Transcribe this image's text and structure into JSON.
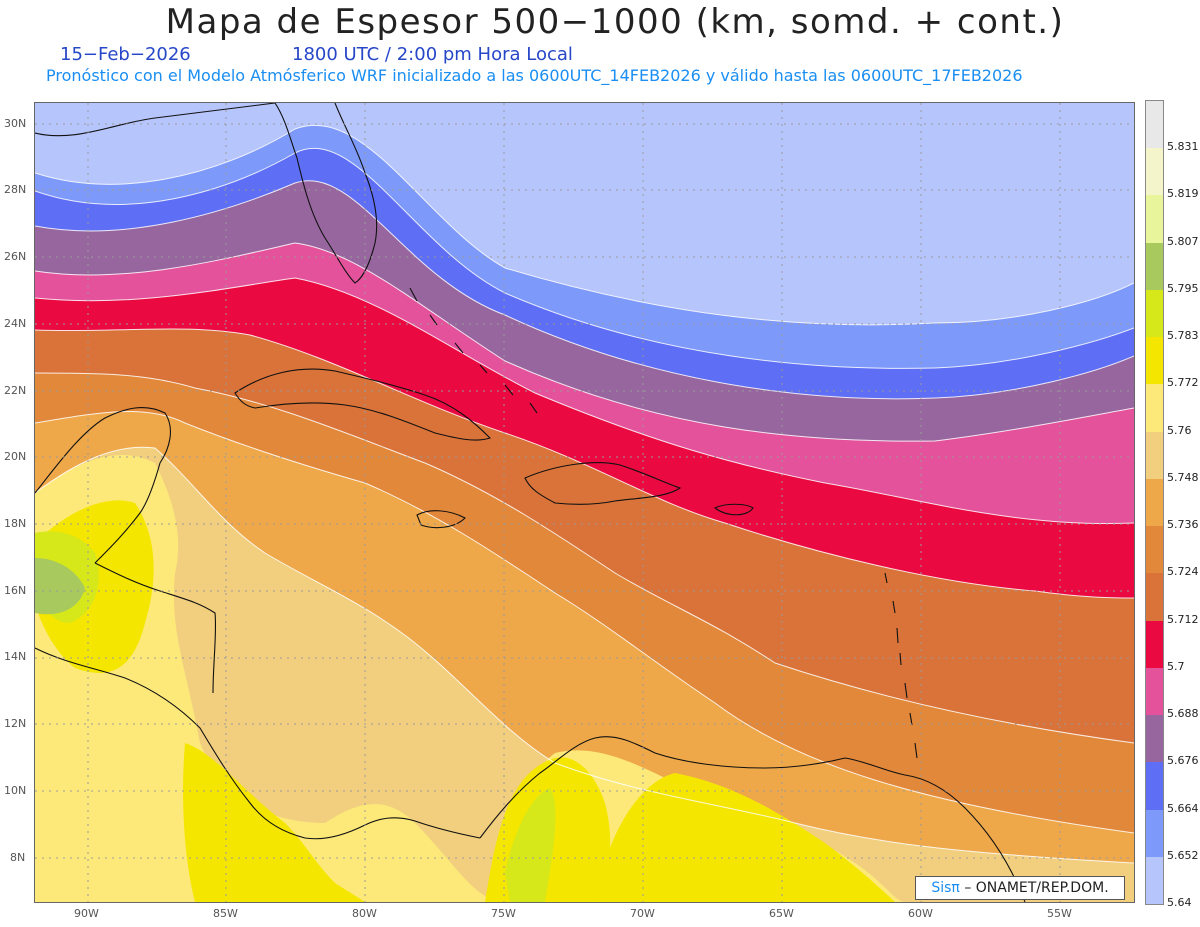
{
  "title": "Mapa de Espesor 500−1000 (km, somd. + cont.)",
  "date": "15−Feb−2026",
  "time": "1800 UTC / 2:00 pm Hora Local",
  "subtitle": "Pronóstico con el Modelo Atmósferico WRF inicializado a las 0600UTC_14FEB2026 y válido hasta las  0600UTC_17FEB2026",
  "lat_labels": [
    "30N",
    "28N",
    "26N",
    "24N",
    "22N",
    "20N",
    "18N",
    "16N",
    "14N",
    "12N",
    "10N",
    "8N"
  ],
  "lon_labels": [
    "90W",
    "85W",
    "80W",
    "75W",
    "70W",
    "65W",
    "60W",
    "55W"
  ],
  "legend": {
    "labels": [
      "5.831",
      "5.819",
      "5.807",
      "5.795",
      "5.783",
      "5.772",
      "5.76",
      "5.748",
      "5.736",
      "5.724",
      "5.712",
      "5.7",
      "5.688",
      "5.676",
      "5.664",
      "5.652",
      "5.64"
    ],
    "colors": [
      "#e8e8e8",
      "#f5f5cc",
      "#e8f59a",
      "#a7c95e",
      "#d7e81a",
      "#f5e600",
      "#fde97a",
      "#f1cf7e",
      "#eea84a",
      "#e2883a",
      "#d9733a",
      "#ea0a41",
      "#e4529c",
      "#98669f",
      "#5e6ef5",
      "#7d99f9",
      "#b7c5fd"
    ]
  },
  "credit": {
    "brand": "Sisπ",
    "org": "– ONAMET/REP.DOM."
  }
}
